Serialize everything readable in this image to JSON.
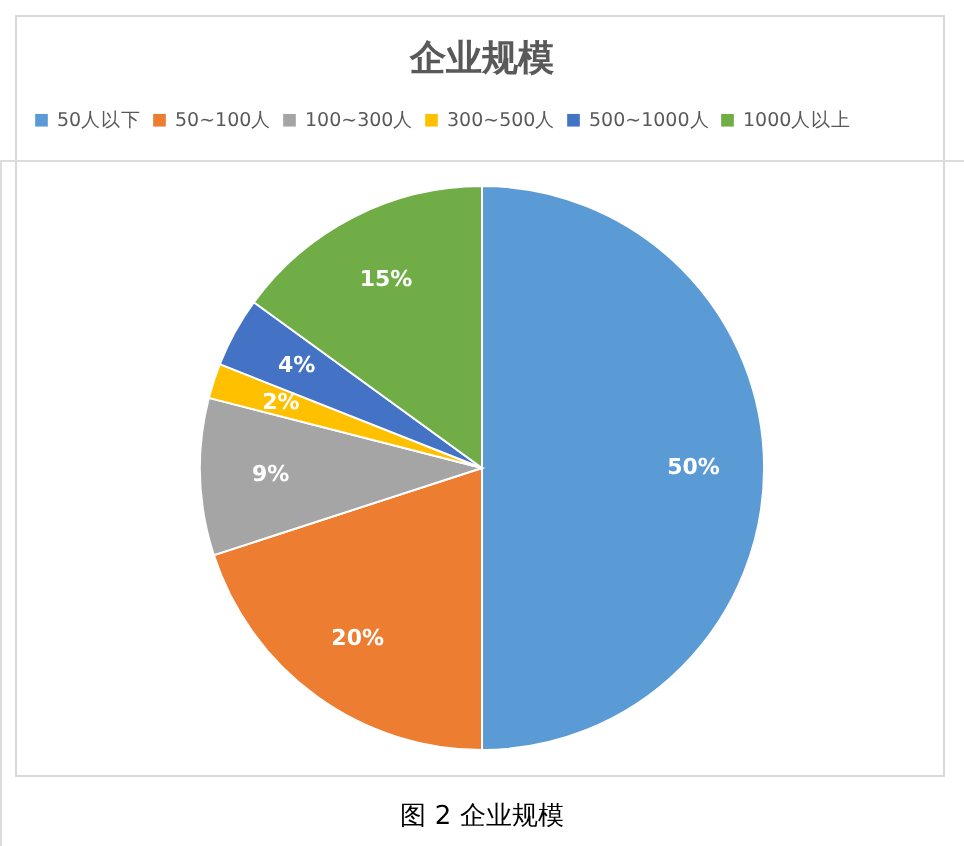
{
  "chart_data": {
    "type": "pie",
    "title": "企业规模",
    "categories": [
      "50人以下",
      "50~100人",
      "100~300人",
      "300~500人",
      "500~1000人",
      "1000人以上"
    ],
    "values": [
      50,
      20,
      9,
      2,
      4,
      15
    ],
    "colors": [
      "#5b9bd5",
      "#ed7d31",
      "#a5a5a5",
      "#ffc000",
      "#4472c4",
      "#70ad47"
    ],
    "value_labels": [
      "50%",
      "20%",
      "9%",
      "2%",
      "4%",
      "15%"
    ],
    "legend": "top",
    "annotations": [
      "图 2 企业规模"
    ]
  }
}
